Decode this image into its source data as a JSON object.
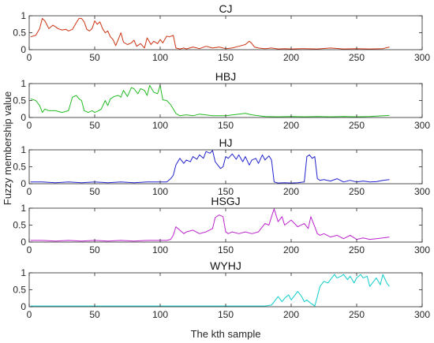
{
  "figure": {
    "ylabel": "Fuzzy membership value",
    "xlabel": "The kth sample"
  },
  "chart_data": [
    {
      "type": "line",
      "title": "CJ",
      "xlim": [
        0,
        300
      ],
      "ylim": [
        0,
        1
      ],
      "x_ticks": [
        0,
        50,
        100,
        150,
        200,
        250,
        300
      ],
      "y_ticks": [
        0,
        0.5,
        1
      ],
      "grid": false,
      "series": [
        {
          "color": "#cc3311",
          "x": [
            1,
            5,
            8,
            10,
            12,
            15,
            18,
            20,
            22,
            25,
            28,
            30,
            33,
            36,
            38,
            40,
            42,
            44,
            46,
            48,
            50,
            52,
            54,
            56,
            58,
            60,
            62,
            64,
            66,
            68,
            70,
            72,
            75,
            78,
            80,
            82,
            85,
            88,
            90,
            93,
            95,
            98,
            100,
            102,
            105,
            107,
            110,
            112,
            115,
            118,
            120,
            125,
            130,
            135,
            140,
            145,
            150,
            155,
            160,
            165,
            168,
            170,
            172,
            175,
            180,
            185,
            190,
            195,
            200,
            210,
            220,
            230,
            240,
            250,
            260,
            270,
            275
          ],
          "y": [
            0.38,
            0.42,
            0.62,
            0.92,
            0.85,
            0.62,
            0.72,
            0.68,
            0.62,
            0.58,
            0.6,
            0.55,
            0.6,
            0.8,
            0.92,
            0.92,
            0.82,
            0.6,
            0.55,
            0.62,
            0.85,
            0.75,
            0.82,
            0.62,
            0.5,
            0.55,
            0.38,
            0.3,
            0.12,
            0.3,
            0.5,
            0.22,
            0.15,
            0.2,
            0.28,
            0.1,
            0.18,
            0.05,
            0.35,
            0.15,
            0.25,
            0.18,
            0.3,
            0.2,
            0.4,
            0.38,
            0.42,
            0.05,
            0.02,
            0.05,
            0.02,
            0.08,
            0.03,
            0.1,
            0.05,
            0.08,
            0.03,
            0.05,
            0.1,
            0.15,
            0.25,
            0.18,
            0.08,
            0.05,
            0.03,
            0.05,
            0.02,
            0.03,
            0.02,
            0.03,
            0.02,
            0.05,
            0.02,
            0.03,
            0.02,
            0.03,
            0.08
          ]
        }
      ]
    },
    {
      "type": "line",
      "title": "HBJ",
      "xlim": [
        0,
        300
      ],
      "ylim": [
        0,
        1
      ],
      "x_ticks": [
        0,
        50,
        100,
        150,
        200,
        250,
        300
      ],
      "y_ticks": [
        0,
        0.5,
        1
      ],
      "grid": false,
      "series": [
        {
          "color": "#22bb22",
          "x": [
            1,
            5,
            8,
            10,
            12,
            15,
            20,
            25,
            30,
            33,
            36,
            38,
            40,
            42,
            45,
            48,
            50,
            53,
            55,
            58,
            60,
            62,
            65,
            68,
            70,
            72,
            75,
            78,
            80,
            83,
            85,
            88,
            90,
            92,
            95,
            98,
            100,
            102,
            105,
            108,
            110,
            112,
            115,
            120,
            125,
            130,
            140,
            150,
            160,
            165,
            170,
            175,
            180,
            190,
            200,
            210,
            220,
            230,
            240,
            250,
            260,
            270,
            275
          ],
          "y": [
            0.55,
            0.5,
            0.35,
            0.15,
            0.25,
            0.2,
            0.2,
            0.15,
            0.2,
            0.6,
            0.65,
            0.55,
            0.5,
            0.2,
            0.15,
            0.2,
            0.15,
            0.2,
            0.25,
            0.5,
            0.35,
            0.55,
            0.62,
            0.65,
            0.6,
            0.8,
            0.62,
            0.88,
            0.85,
            0.7,
            0.85,
            0.8,
            0.65,
            0.95,
            0.75,
            0.7,
            0.95,
            0.52,
            0.5,
            0.38,
            0.25,
            0.12,
            0.05,
            0.08,
            0.05,
            0.1,
            0.05,
            0.05,
            0.1,
            0.12,
            0.08,
            0.05,
            0.03,
            0.02,
            0.03,
            0.02,
            0.03,
            0.02,
            0.03,
            0.02,
            0.03,
            0.05,
            0.06
          ]
        }
      ]
    },
    {
      "type": "line",
      "title": "HJ",
      "xlim": [
        0,
        300
      ],
      "ylim": [
        0,
        1
      ],
      "x_ticks": [
        0,
        50,
        100,
        150,
        200,
        250,
        300
      ],
      "y_ticks": [
        0,
        0.5,
        1
      ],
      "grid": false,
      "series": [
        {
          "color": "#2222cc",
          "x": [
            1,
            10,
            20,
            30,
            40,
            50,
            60,
            70,
            80,
            90,
            100,
            105,
            108,
            110,
            112,
            115,
            118,
            120,
            123,
            125,
            128,
            130,
            133,
            135,
            138,
            140,
            142,
            144,
            146,
            148,
            150,
            152,
            155,
            158,
            160,
            163,
            165,
            168,
            170,
            173,
            175,
            178,
            180,
            183,
            185,
            187,
            190,
            195,
            200,
            205,
            210,
            212,
            214,
            216,
            218,
            220,
            222,
            225,
            230,
            235,
            240,
            245,
            250,
            255,
            260,
            265,
            270,
            275
          ],
          "y": [
            0.05,
            0.05,
            0.03,
            0.05,
            0.03,
            0.05,
            0.03,
            0.05,
            0.03,
            0.05,
            0.05,
            0.05,
            0.15,
            0.25,
            0.55,
            0.75,
            0.6,
            0.7,
            0.65,
            0.8,
            0.72,
            0.85,
            0.75,
            0.95,
            0.9,
            0.98,
            0.65,
            0.55,
            0.45,
            0.5,
            0.8,
            0.75,
            0.88,
            0.72,
            0.85,
            0.65,
            0.8,
            0.55,
            0.7,
            0.75,
            0.6,
            0.85,
            0.7,
            0.82,
            0.7,
            0.05,
            0.02,
            0.03,
            0.02,
            0.03,
            0.05,
            0.8,
            0.85,
            0.75,
            0.8,
            0.15,
            0.1,
            0.12,
            0.08,
            0.15,
            0.05,
            0.1,
            0.05,
            0.08,
            0.05,
            0.06,
            0.1,
            0.12
          ]
        }
      ]
    },
    {
      "type": "line",
      "title": "HSGJ",
      "xlim": [
        0,
        300
      ],
      "ylim": [
        0,
        1
      ],
      "x_ticks": [
        0,
        50,
        100,
        150,
        200,
        250,
        300
      ],
      "y_ticks": [
        0,
        0.5,
        1
      ],
      "grid": false,
      "series": [
        {
          "color": "#bb22cc",
          "x": [
            1,
            10,
            20,
            30,
            40,
            50,
            60,
            70,
            80,
            90,
            100,
            105,
            108,
            110,
            112,
            115,
            118,
            120,
            125,
            130,
            135,
            140,
            142,
            145,
            148,
            150,
            152,
            155,
            160,
            165,
            170,
            175,
            180,
            183,
            185,
            187,
            190,
            193,
            195,
            200,
            205,
            210,
            213,
            215,
            218,
            220,
            222,
            225,
            230,
            235,
            240,
            245,
            250,
            255,
            260,
            265,
            270,
            275
          ],
          "y": [
            0.05,
            0.05,
            0.03,
            0.05,
            0.03,
            0.05,
            0.03,
            0.05,
            0.03,
            0.05,
            0.05,
            0.05,
            0.08,
            0.2,
            0.45,
            0.35,
            0.25,
            0.3,
            0.35,
            0.25,
            0.3,
            0.4,
            0.72,
            0.8,
            0.75,
            0.3,
            0.25,
            0.3,
            0.25,
            0.3,
            0.25,
            0.3,
            0.55,
            0.5,
            0.75,
            0.98,
            0.6,
            0.75,
            0.5,
            0.65,
            0.45,
            0.55,
            0.4,
            0.75,
            0.45,
            0.25,
            0.2,
            0.25,
            0.15,
            0.2,
            0.1,
            0.2,
            0.08,
            0.12,
            0.08,
            0.1,
            0.12,
            0.15
          ]
        }
      ]
    },
    {
      "type": "line",
      "title": "WYHJ",
      "xlim": [
        0,
        300
      ],
      "ylim": [
        0,
        1
      ],
      "x_ticks": [
        0,
        50,
        100,
        150,
        200,
        250,
        300
      ],
      "y_ticks": [
        0,
        0.5,
        1
      ],
      "grid": false,
      "series": [
        {
          "color": "#11cccc",
          "x": [
            1,
            20,
            40,
            60,
            80,
            100,
            120,
            140,
            160,
            180,
            185,
            188,
            190,
            193,
            195,
            198,
            200,
            203,
            205,
            208,
            210,
            212,
            215,
            218,
            220,
            222,
            225,
            228,
            230,
            233,
            235,
            238,
            240,
            243,
            245,
            248,
            250,
            253,
            255,
            258,
            260,
            263,
            265,
            268,
            270,
            273,
            275
          ],
          "y": [
            0.02,
            0.02,
            0.02,
            0.02,
            0.02,
            0.02,
            0.02,
            0.02,
            0.02,
            0.02,
            0.05,
            0.2,
            0.3,
            0.15,
            0.25,
            0.35,
            0.2,
            0.35,
            0.45,
            0.3,
            0.15,
            0.2,
            0.1,
            0.02,
            0.3,
            0.6,
            0.75,
            0.7,
            0.8,
            0.95,
            0.85,
            0.9,
            0.95,
            0.8,
            0.9,
            0.7,
            0.85,
            0.95,
            0.85,
            0.9,
            0.6,
            0.75,
            0.85,
            0.65,
            0.95,
            0.7,
            0.6
          ]
        }
      ]
    }
  ]
}
